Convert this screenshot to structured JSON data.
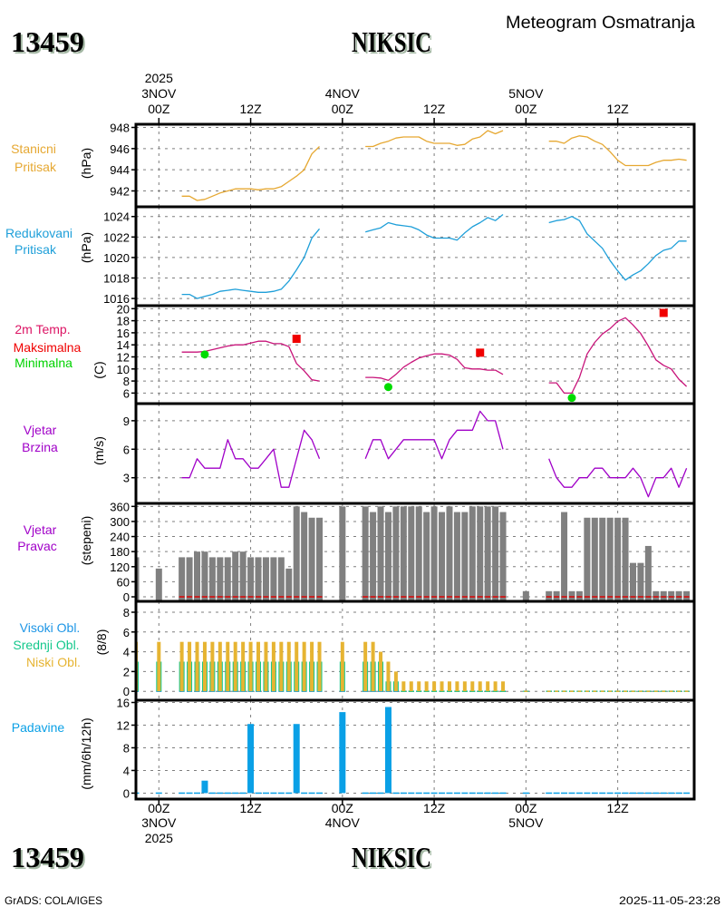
{
  "header": {
    "station_id": "13459",
    "station_name": "NIKSIC",
    "title": "Meteogram Osmatranja"
  },
  "time_axis": {
    "year": "2025",
    "xlim": [
      -3,
      70
    ],
    "ticks": [
      {
        "hour": 0,
        "time": "00Z",
        "date": "3NOV"
      },
      {
        "hour": 12,
        "time": "12Z",
        "date": ""
      },
      {
        "hour": 24,
        "time": "00Z",
        "date": "4NOV"
      },
      {
        "hour": 36,
        "time": "12Z",
        "date": ""
      },
      {
        "hour": 48,
        "time": "00Z",
        "date": "5NOV"
      },
      {
        "hour": 60,
        "time": "12Z",
        "date": ""
      }
    ]
  },
  "footer": {
    "station_id": "13459",
    "station_name": "NIKSIC",
    "credit": "GrADS: COLA/IGES",
    "timestamp": "2025-11-05-23:28"
  },
  "chart_data": [
    {
      "id": "stanicni-pritisak",
      "type": "line",
      "label_lines": [
        {
          "text": "Stanicni",
          "color": "#e6a832"
        },
        {
          "text": "Pritisak",
          "color": "#e6a832"
        }
      ],
      "ylabel": "(hPa)",
      "ylim": [
        940.5,
        948.3
      ],
      "yticks": [
        942,
        944,
        946,
        948
      ],
      "xlim": [
        -3,
        70
      ],
      "grid": true,
      "series": [
        {
          "name": "Stanicni Pritisak",
          "color": "#e6a832",
          "segments": [
            {
              "x0": 3,
              "values": [
                941.5,
                941.5,
                941.1,
                941.2,
                941.5,
                941.8,
                942.0,
                942.2,
                942.2,
                942.2,
                942.1,
                942.2,
                942.2,
                942.4,
                942.9,
                943.4,
                944.0,
                945.5,
                946.2
              ]
            },
            {
              "x0": 27,
              "values": [
                946.2,
                946.2,
                946.5,
                946.7,
                947.0,
                947.1,
                947.1,
                947.1,
                946.7,
                946.5,
                946.5,
                946.5,
                946.3,
                946.4,
                946.9,
                947.1,
                947.7,
                947.4,
                947.7
              ]
            },
            {
              "x0": 51,
              "values": [
                946.7,
                946.7,
                946.5,
                947.0,
                947.2,
                947.1,
                946.7,
                946.4,
                945.7,
                944.9,
                944.4,
                944.4,
                944.4,
                944.4,
                944.7,
                944.9,
                944.9,
                945.0,
                944.9
              ]
            }
          ]
        }
      ]
    },
    {
      "id": "redukovani-pritisak",
      "type": "line",
      "label_lines": [
        {
          "text": "Redukovani",
          "color": "#1e9fd9"
        },
        {
          "text": "Pritisak",
          "color": "#1e9fd9"
        }
      ],
      "ylabel": "(hPa)",
      "ylim": [
        1015.3,
        1024.95
      ],
      "yticks": [
        1016,
        1018,
        1020,
        1022,
        1024
      ],
      "xlim": [
        -3,
        70
      ],
      "grid": true,
      "series": [
        {
          "name": "Redukovani Pritisak",
          "color": "#1e9fd9",
          "segments": [
            {
              "x0": 3,
              "values": [
                1016.4,
                1016.4,
                1016.0,
                1016.2,
                1016.4,
                1016.7,
                1016.8,
                1016.9,
                1016.8,
                1016.7,
                1016.6,
                1016.6,
                1016.7,
                1016.9,
                1017.7,
                1018.8,
                1020.0,
                1021.9,
                1022.8
              ]
            },
            {
              "x0": 27,
              "values": [
                1022.5,
                1022.7,
                1022.9,
                1023.4,
                1023.2,
                1023.1,
                1023.0,
                1022.7,
                1022.2,
                1021.9,
                1021.9,
                1021.9,
                1021.7,
                1022.4,
                1023.0,
                1023.4,
                1023.9,
                1023.6,
                1024.2
              ]
            },
            {
              "x0": 51,
              "values": [
                1023.4,
                1023.6,
                1023.7,
                1024.0,
                1023.6,
                1022.3,
                1021.6,
                1020.9,
                1019.7,
                1018.7,
                1017.8,
                1018.3,
                1018.7,
                1019.4,
                1020.2,
                1020.7,
                1020.9,
                1021.6,
                1021.6
              ]
            }
          ]
        }
      ]
    },
    {
      "id": "temperatura",
      "type": "line",
      "label_lines": [
        {
          "text": "2m Temp.",
          "color": "#dc1464"
        },
        {
          "text": "Maksimalna",
          "color": "#f00000"
        },
        {
          "text": "Minimalna",
          "color": "#00d200"
        }
      ],
      "ylabel": "(C)",
      "ylim": [
        4.25,
        20.5
      ],
      "yticks": [
        6,
        8,
        10,
        12,
        14,
        16,
        18,
        20
      ],
      "xlim": [
        -3,
        70
      ],
      "grid": true,
      "series": [
        {
          "name": "2m Temp.",
          "color": "#c8147a",
          "segments": [
            {
              "x0": 3,
              "values": [
                12.8,
                12.8,
                12.8,
                12.9,
                13.2,
                13.5,
                13.8,
                14.0,
                14.0,
                14.3,
                14.6,
                14.6,
                14.2,
                14.2,
                13.7,
                10.9,
                9.7,
                8.2,
                8.0
              ]
            },
            {
              "x0": 27,
              "values": [
                8.6,
                8.6,
                8.5,
                8.1,
                9.1,
                10.3,
                11.1,
                11.8,
                12.2,
                12.5,
                12.5,
                12.3,
                11.6,
                10.2,
                10.0,
                10.0,
                9.8,
                9.8,
                9.1
              ]
            },
            {
              "x0": 51,
              "values": [
                7.7,
                7.7,
                6.0,
                6.0,
                8.6,
                12.5,
                14.4,
                15.8,
                16.7,
                17.9,
                18.5,
                17.3,
                15.9,
                13.8,
                11.5,
                10.6,
                10.0,
                8.3,
                7.1
              ]
            }
          ]
        }
      ],
      "markers": [
        {
          "name": "Maksimalna",
          "color": "#f00000",
          "shape": "square",
          "points": [
            {
              "x": 18,
              "y": 15.0
            },
            {
              "x": 42,
              "y": 12.7
            },
            {
              "x": 66,
              "y": 19.3
            }
          ]
        },
        {
          "name": "Minimalna",
          "color": "#00dc00",
          "shape": "circle",
          "points": [
            {
              "x": 6,
              "y": 12.4
            },
            {
              "x": 30,
              "y": 7.0
            },
            {
              "x": 54,
              "y": 5.2
            }
          ]
        }
      ]
    },
    {
      "id": "vjetar-brzina",
      "type": "line",
      "label_lines": [
        {
          "text": "Vjetar",
          "color": "#a000c8"
        },
        {
          "text": "Brzina",
          "color": "#a000c8"
        }
      ],
      "ylabel": "(m/s)",
      "ylim": [
        0.3,
        10.8
      ],
      "yticks": [
        3,
        6,
        9
      ],
      "xlim": [
        -3,
        70
      ],
      "grid": true,
      "series": [
        {
          "name": "Vjetar Brzina",
          "color": "#a000c8",
          "segments": [
            {
              "x0": 3,
              "values": [
                3,
                3,
                5,
                4,
                4,
                4,
                7,
                5,
                5,
                4,
                4,
                5,
                6,
                2,
                2,
                5,
                8,
                7,
                5
              ]
            },
            {
              "x0": 27,
              "values": [
                5,
                7,
                7,
                5,
                6,
                7,
                7,
                7,
                7,
                7,
                5,
                7,
                8,
                8,
                8,
                10,
                9,
                9,
                6
              ]
            },
            {
              "x0": 51,
              "values": [
                5,
                3,
                2,
                2,
                3,
                3,
                4,
                4,
                3,
                3,
                3,
                4,
                3,
                1,
                3,
                3,
                4,
                2,
                4
              ]
            }
          ]
        }
      ]
    },
    {
      "id": "vjetar-pravac",
      "type": "bar",
      "label_lines": [
        {
          "text": "Vjetar",
          "color": "#a000c8"
        },
        {
          "text": "Pravac",
          "color": "#a000c8"
        }
      ],
      "ylabel": "(stepeni)",
      "ylim": [
        -18,
        372
      ],
      "yticks": [
        0,
        60,
        120,
        180,
        240,
        300,
        360
      ],
      "xlim": [
        -3,
        70
      ],
      "grid": true,
      "x": [
        -3,
        0,
        3,
        4,
        5,
        6,
        7,
        8,
        9,
        10,
        11,
        12,
        13,
        14,
        15,
        16,
        17,
        18,
        19,
        20,
        21,
        24,
        27,
        28,
        29,
        30,
        31,
        32,
        33,
        34,
        35,
        36,
        37,
        38,
        39,
        40,
        41,
        42,
        43,
        44,
        45,
        48,
        51,
        52,
        53,
        54,
        55,
        56,
        57,
        58,
        59,
        60,
        61,
        62,
        63,
        64,
        65,
        66,
        67,
        68,
        69
      ],
      "series": [
        {
          "name": "Vjetar Pravac",
          "color": "#808080",
          "values": [
            157.5,
            112.5,
            157.5,
            157.5,
            180,
            180,
            157.5,
            157.5,
            157.5,
            180,
            180,
            157.5,
            157.5,
            157.5,
            157.5,
            157.5,
            112.5,
            360,
            337.5,
            315,
            315,
            360,
            360,
            337.5,
            360,
            337.5,
            360,
            360,
            360,
            360,
            337.5,
            360,
            337.5,
            360,
            337.5,
            337.5,
            360,
            360,
            360,
            360,
            337.5,
            22.5,
            22.5,
            22.5,
            337.5,
            22.5,
            22.5,
            315,
            315,
            315,
            315,
            315,
            315,
            135,
            135,
            202.5,
            22.5,
            22.5,
            22.5,
            22.5,
            22.5
          ]
        }
      ],
      "baseline_marks": {
        "color": "#e00000",
        "value": 0,
        "x_ranges": [
          [
            3,
            21
          ],
          [
            27,
            45
          ],
          [
            51,
            69
          ]
        ]
      }
    },
    {
      "id": "oblacnost",
      "type": "bar",
      "label_lines": [
        {
          "text": "Visoki Obl.",
          "color": "#1e96e6"
        },
        {
          "text": "Srednji Obl.",
          "color": "#14c88c"
        },
        {
          "text": "Niski Obl.",
          "color": "#e6b432"
        }
      ],
      "ylabel": "(8/8)",
      "ylim": [
        -0.9,
        9.1
      ],
      "yticks": [
        0,
        2,
        4,
        6,
        8
      ],
      "xlim": [
        -3,
        70
      ],
      "grid": true,
      "x": [
        -3,
        0,
        3,
        4,
        5,
        6,
        7,
        8,
        9,
        10,
        11,
        12,
        13,
        14,
        15,
        16,
        17,
        18,
        19,
        20,
        21,
        24,
        27,
        28,
        29,
        30,
        31,
        32,
        33,
        34,
        35,
        36,
        37,
        38,
        39,
        40,
        41,
        42,
        43,
        44,
        45,
        48,
        51,
        52,
        53,
        54,
        55,
        56,
        57,
        58,
        59,
        60,
        61,
        62,
        63,
        64,
        65,
        66,
        67,
        68,
        69
      ],
      "series": [
        {
          "name": "Visoki Obl.",
          "color": "#1e96e6",
          "values": [
            0,
            0,
            0,
            0,
            0,
            0,
            0,
            0,
            0,
            0,
            0,
            0,
            0,
            0,
            0,
            0,
            0,
            0,
            0,
            0,
            0,
            0,
            0,
            0,
            0,
            0,
            0,
            0,
            0,
            0,
            0,
            0,
            0,
            0,
            0,
            0,
            0,
            0,
            0,
            0,
            0,
            0,
            0,
            0,
            0,
            0,
            0,
            0,
            0,
            0,
            0,
            0,
            0,
            0,
            0,
            0,
            0,
            0,
            0,
            0,
            0
          ]
        },
        {
          "name": "Srednji Obl.",
          "color": "#14c88c",
          "values": [
            3,
            3,
            3,
            3,
            3,
            3,
            3,
            3,
            3,
            3,
            3,
            3,
            3,
            3,
            3,
            3,
            3,
            3,
            3,
            3,
            3,
            3,
            3,
            3,
            3,
            1,
            1,
            0,
            0,
            0,
            0,
            0,
            0,
            0,
            0,
            0,
            0,
            0,
            0,
            0,
            0,
            0,
            0,
            0,
            0,
            0,
            0,
            0,
            0,
            0,
            0,
            0,
            0,
            0,
            0,
            0,
            0,
            0,
            0,
            0,
            0
          ]
        },
        {
          "name": "Niski Obl.",
          "color": "#e6b432",
          "values": [
            5,
            5,
            5,
            5,
            5,
            5,
            5,
            5,
            5,
            5,
            5,
            5,
            5,
            5,
            5,
            5,
            5,
            5,
            5,
            5,
            5,
            5,
            5,
            5,
            4,
            3,
            2,
            1,
            1,
            1,
            1,
            1,
            1,
            1,
            1,
            1,
            1,
            1,
            1,
            1,
            1,
            0,
            0,
            0,
            0,
            0,
            0,
            0,
            0,
            0,
            0,
            0,
            0,
            0,
            0,
            0,
            0,
            0,
            0,
            0,
            0
          ]
        }
      ]
    },
    {
      "id": "padavine",
      "type": "bar",
      "label_lines": [
        {
          "text": "Padavine",
          "color": "#0aa0e6"
        }
      ],
      "ylabel": "(mm/6h/12h)",
      "ylim": [
        -1.05,
        16.4
      ],
      "yticks": [
        0,
        4,
        8,
        12,
        16
      ],
      "xlim": [
        -3,
        70
      ],
      "grid": true,
      "x": [
        -3,
        0,
        3,
        4,
        5,
        6,
        7,
        8,
        9,
        10,
        11,
        12,
        13,
        14,
        15,
        16,
        17,
        18,
        19,
        20,
        21,
        24,
        27,
        28,
        29,
        30,
        31,
        32,
        33,
        34,
        35,
        36,
        37,
        38,
        39,
        40,
        41,
        42,
        43,
        44,
        45,
        48,
        51,
        52,
        53,
        54,
        55,
        56,
        57,
        58,
        59,
        60,
        61,
        62,
        63,
        64,
        65,
        66,
        67,
        68,
        69
      ],
      "series": [
        {
          "name": "Padavine",
          "color": "#0aa0e6",
          "values": [
            0,
            0,
            0,
            0,
            0,
            2.2,
            0,
            0,
            0,
            0,
            0,
            12.2,
            0,
            0,
            0,
            0,
            0,
            12.2,
            0,
            0,
            0,
            14.3,
            0,
            0,
            0,
            15.2,
            0,
            0,
            0,
            0,
            0,
            0,
            0,
            0,
            0,
            0,
            0,
            0,
            0,
            0,
            0,
            0,
            0,
            0,
            0,
            0,
            0,
            0,
            0,
            0,
            0,
            0,
            0,
            0,
            0,
            0,
            0,
            0,
            0,
            0,
            0
          ]
        }
      ]
    }
  ]
}
